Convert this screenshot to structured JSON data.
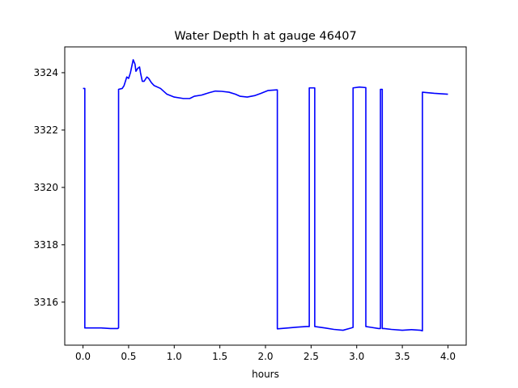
{
  "chart_data": {
    "type": "line",
    "title": "Water Depth h at gauge 46407",
    "xlabel": "hours",
    "ylabel": "",
    "xlim": [
      -0.2,
      4.2
    ],
    "ylim": [
      3314.5,
      3324.9
    ],
    "xticks": [
      0.0,
      0.5,
      1.0,
      1.5,
      2.0,
      2.5,
      3.0,
      3.5,
      4.0
    ],
    "xtick_labels": [
      "0.0",
      "0.5",
      "1.0",
      "1.5",
      "2.0",
      "2.5",
      "3.0",
      "3.5",
      "4.0"
    ],
    "yticks": [
      3316,
      3318,
      3320,
      3322,
      3324
    ],
    "ytick_labels": [
      "3316",
      "3318",
      "3320",
      "3322",
      "3324"
    ],
    "grid": false,
    "series": [
      {
        "color": "#0000ff",
        "x": [
          0.0,
          0.02,
          0.02,
          0.1,
          0.2,
          0.3,
          0.38,
          0.39,
          0.39,
          0.43,
          0.45,
          0.48,
          0.5,
          0.52,
          0.55,
          0.57,
          0.58,
          0.6,
          0.62,
          0.63,
          0.65,
          0.67,
          0.7,
          0.72,
          0.75,
          0.78,
          0.85,
          0.92,
          1.0,
          1.1,
          1.17,
          1.22,
          1.3,
          1.38,
          1.45,
          1.52,
          1.6,
          1.67,
          1.72,
          1.8,
          1.88,
          1.95,
          2.03,
          2.12,
          2.13,
          2.13,
          2.25,
          2.35,
          2.45,
          2.48,
          2.48,
          2.54,
          2.54,
          2.65,
          2.75,
          2.85,
          2.94,
          2.96,
          2.96,
          3.03,
          3.1,
          3.1,
          3.16,
          3.24,
          3.26,
          3.26,
          3.28,
          3.28,
          3.3,
          3.3,
          3.38,
          3.5,
          3.6,
          3.7,
          3.72,
          3.72,
          3.85,
          4.0
        ],
        "y": [
          3323.45,
          3323.45,
          3315.1,
          3315.1,
          3315.1,
          3315.08,
          3315.08,
          3315.1,
          3323.42,
          3323.45,
          3323.55,
          3323.85,
          3323.8,
          3324.0,
          3324.45,
          3324.3,
          3324.05,
          3324.15,
          3324.2,
          3324.0,
          3323.7,
          3323.7,
          3323.85,
          3323.8,
          3323.65,
          3323.55,
          3323.45,
          3323.25,
          3323.15,
          3323.1,
          3323.1,
          3323.18,
          3323.22,
          3323.3,
          3323.36,
          3323.35,
          3323.32,
          3323.25,
          3323.18,
          3323.15,
          3323.2,
          3323.28,
          3323.38,
          3323.4,
          3323.4,
          3315.07,
          3315.1,
          3315.13,
          3315.15,
          3315.15,
          3323.47,
          3323.47,
          3315.15,
          3315.1,
          3315.05,
          3315.02,
          3315.1,
          3315.12,
          3323.47,
          3323.5,
          3323.48,
          3315.15,
          3315.12,
          3315.08,
          3315.08,
          3323.42,
          3323.42,
          3315.08,
          3315.08,
          3315.08,
          3315.05,
          3315.02,
          3315.04,
          3315.02,
          3315.0,
          3323.32,
          3323.28,
          3323.25
        ]
      }
    ]
  }
}
